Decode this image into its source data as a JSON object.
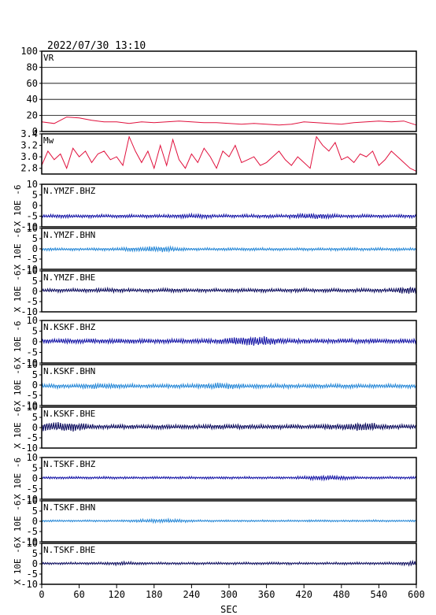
{
  "header": {
    "datetime": "2022/07/30  13:10"
  },
  "x_axis": {
    "label": "SEC",
    "ticks": [
      0,
      60,
      120,
      180,
      240,
      300,
      360,
      420,
      480,
      540,
      600
    ]
  },
  "colors": {
    "vr_line": "#e0103c",
    "mw_line": "#e0103c",
    "bhz": "#1a1aa8",
    "bhn": "#2a8ad8",
    "bhe": "#101060",
    "frame": "#000000"
  },
  "chart_data": [
    {
      "type": "line",
      "panel": "VR",
      "label": "VR",
      "ylim": [
        0,
        100
      ],
      "yticks": [
        "100",
        "80",
        "60",
        "40",
        "20",
        "0"
      ],
      "xlim": [
        0,
        600
      ],
      "grid": true,
      "series": [
        {
          "x": [
            0,
            20,
            40,
            60,
            80,
            100,
            120,
            140,
            160,
            180,
            200,
            220,
            240,
            260,
            280,
            300,
            320,
            340,
            360,
            380,
            400,
            420,
            440,
            460,
            480,
            500,
            520,
            540,
            560,
            580,
            600
          ],
          "values": [
            12,
            10,
            18,
            17,
            14,
            12,
            12,
            10,
            12,
            11,
            12,
            13,
            12,
            11,
            11,
            10,
            9,
            10,
            9,
            8,
            9,
            12,
            11,
            10,
            9,
            11,
            12,
            13,
            12,
            13,
            8
          ]
        }
      ]
    },
    {
      "type": "line",
      "panel": "Mw",
      "label": "Mw",
      "ylim": [
        2.7,
        3.4
      ],
      "yticks": [
        "3.4",
        "3.2",
        "3.0",
        "2.8"
      ],
      "xlim": [
        0,
        600
      ],
      "series": [
        {
          "x": [
            0,
            10,
            20,
            30,
            40,
            50,
            60,
            70,
            80,
            90,
            100,
            110,
            120,
            130,
            140,
            150,
            160,
            170,
            180,
            190,
            200,
            210,
            220,
            230,
            240,
            250,
            260,
            270,
            280,
            290,
            300,
            310,
            320,
            330,
            340,
            350,
            360,
            370,
            380,
            390,
            400,
            410,
            420,
            430,
            440,
            450,
            460,
            470,
            480,
            490,
            500,
            510,
            520,
            530,
            540,
            550,
            560,
            570,
            580,
            590,
            600
          ],
          "values": [
            2.85,
            3.1,
            2.95,
            3.05,
            2.8,
            3.15,
            3.0,
            3.1,
            2.9,
            3.05,
            3.1,
            2.95,
            3.0,
            2.85,
            3.35,
            3.1,
            2.9,
            3.1,
            2.8,
            3.2,
            2.85,
            3.3,
            2.95,
            2.8,
            3.05,
            2.9,
            3.15,
            3.0,
            2.8,
            3.1,
            3.0,
            3.2,
            2.9,
            2.95,
            3.0,
            2.85,
            2.9,
            3.0,
            3.1,
            2.95,
            2.85,
            3.0,
            2.9,
            2.8,
            3.35,
            3.2,
            3.1,
            3.25,
            2.95,
            3.0,
            2.9,
            3.05,
            3.0,
            3.1,
            2.85,
            2.95,
            3.1,
            3.0,
            2.9,
            2.8,
            2.75
          ]
        }
      ]
    },
    {
      "type": "line",
      "panel": "trace",
      "label": "N.YMZF.BHZ",
      "ylabel": "X 10E -6",
      "ylim": [
        -10,
        10
      ],
      "yticks": [
        "10",
        "5",
        "0",
        "-5",
        "-10"
      ],
      "offset": -5,
      "amp": 0.7,
      "color_key": "bhz"
    },
    {
      "type": "line",
      "panel": "trace",
      "label": "N.YMZF.BHN",
      "ylabel": "X 10E -6",
      "ylim": [
        -10,
        10
      ],
      "yticks": [
        "10",
        "5",
        "0",
        "-5",
        "-10"
      ],
      "offset": -0.2,
      "amp": 0.6,
      "color_key": "bhn"
    },
    {
      "type": "line",
      "panel": "trace",
      "label": "N.YMZF.BHE",
      "ylabel": "X 10E -6",
      "ylim": [
        -10,
        10
      ],
      "yticks": [
        "10",
        "5",
        "0",
        "-5",
        "-10"
      ],
      "offset": 0.5,
      "amp": 0.8,
      "color_key": "bhe"
    },
    {
      "type": "line",
      "panel": "trace",
      "label": "N.KSKF.BHZ",
      "ylabel": "X 10E -6",
      "ylim": [
        -10,
        10
      ],
      "yticks": [
        "10",
        "5",
        "0",
        "-5",
        "-10"
      ],
      "offset": 0.3,
      "amp": 1.0,
      "color_key": "bhz"
    },
    {
      "type": "line",
      "panel": "trace",
      "label": "N.KSKF.BHN",
      "ylabel": "X 10E -6",
      "ylim": [
        -10,
        10
      ],
      "yticks": [
        "10",
        "5",
        "0",
        "-5",
        "-10"
      ],
      "offset": -0.5,
      "amp": 0.9,
      "color_key": "bhn"
    },
    {
      "type": "line",
      "panel": "trace",
      "label": "N.KSKF.BHE",
      "ylabel": "X 10E -6",
      "ylim": [
        -10,
        10
      ],
      "yticks": [
        "10",
        "5",
        "0",
        "-5",
        "-10"
      ],
      "offset": 0.4,
      "amp": 1.0,
      "color_key": "bhe"
    },
    {
      "type": "line",
      "panel": "trace",
      "label": "N.TSKF.BHZ",
      "ylabel": "X 10E -6",
      "ylim": [
        -10,
        10
      ],
      "yticks": [
        "10",
        "5",
        "0",
        "-5",
        "-10"
      ],
      "offset": 0.3,
      "amp": 0.5,
      "color_key": "bhz"
    },
    {
      "type": "line",
      "panel": "trace",
      "label": "N.TSKF.BHN",
      "ylabel": "X 10E -6",
      "ylim": [
        -10,
        10
      ],
      "yticks": [
        "10",
        "5",
        "0",
        "-5",
        "-10"
      ],
      "offset": 0.2,
      "amp": 0.4,
      "color_key": "bhn"
    },
    {
      "type": "line",
      "panel": "trace",
      "label": "N.TSKF.BHE",
      "ylabel": "X 10E -6",
      "ylim": [
        -10,
        10
      ],
      "yticks": [
        "10",
        "5",
        "0",
        "-5",
        "-10"
      ],
      "offset": 0.2,
      "amp": 0.5,
      "color_key": "bhe"
    }
  ]
}
